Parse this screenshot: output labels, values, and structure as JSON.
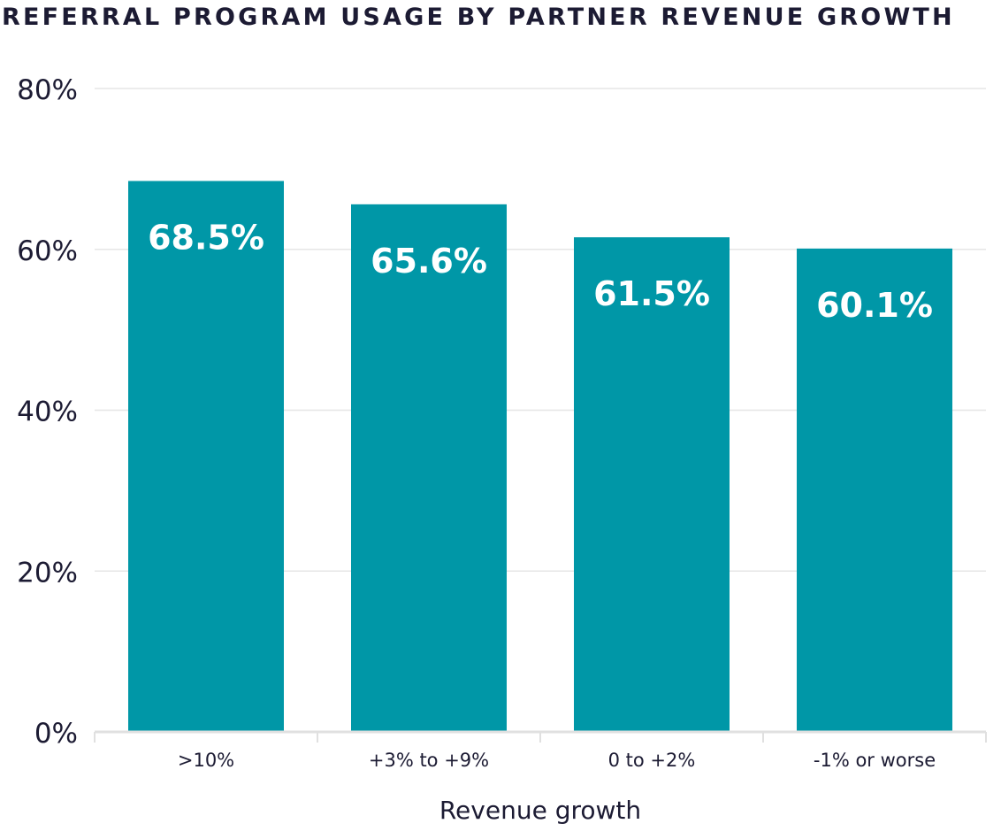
{
  "chart_data": {
    "type": "bar",
    "title": "REFERRAL PROGRAM USAGE BY PARTNER REVENUE GROWTH",
    "categories": [
      ">10%",
      "+3% to +9%",
      "0 to +2%",
      "-1% or worse"
    ],
    "values": [
      68.5,
      65.6,
      61.5,
      60.1
    ],
    "data_labels": [
      "68.5%",
      "65.6%",
      "61.5%",
      "60.1%"
    ],
    "xlabel": "Revenue growth",
    "ylabel": "",
    "ylim": [
      0,
      80
    ],
    "yticks": [
      0,
      20,
      40,
      60,
      80
    ],
    "ytick_labels": [
      "0%",
      "20%",
      "40%",
      "60%",
      "80%"
    ],
    "grid": true,
    "colors": {
      "bar": "#0097a7",
      "text": "#1c1b33",
      "grid": "#e6e6e6",
      "label": "#ffffff"
    }
  }
}
